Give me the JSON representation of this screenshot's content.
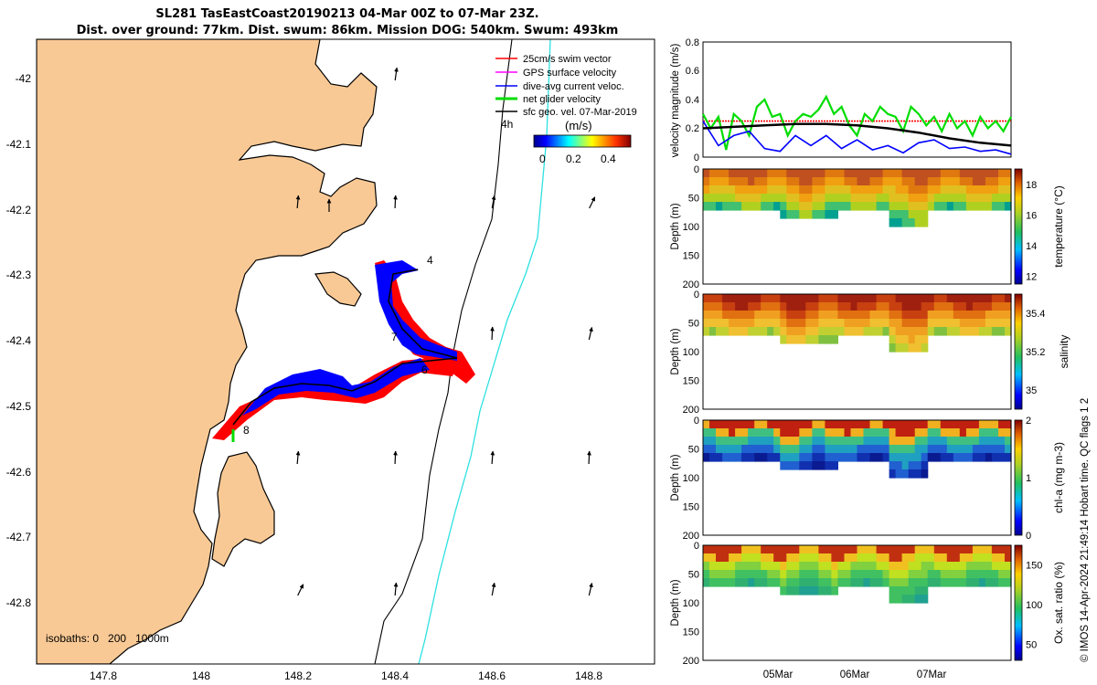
{
  "title": {
    "line1": "SL281 TasEastCoast20190213 04-Mar 00Z to 07-Mar 23Z.",
    "line2": "Dist. over ground: 77km. Dist. swum: 86km. Mission DOG: 540km. Swum: 493km"
  },
  "map": {
    "legend": [
      {
        "label": "25cm/s swim vector",
        "color": "#ff0000"
      },
      {
        "label": "GPS surface velocity",
        "color": "#ff00ff"
      },
      {
        "label": "dive-avg current veloc.",
        "color": "#0000ff"
      },
      {
        "label": "net glider velocity",
        "color": "#00dd00"
      },
      {
        "label": "sfc geo. vel. 07-Mar-2019",
        "color": "#000000"
      }
    ],
    "arrow_age_label": "4h",
    "colorbar_title": "(m/s)",
    "colorbar_ticks": [
      "0",
      "0.2",
      "0.4"
    ],
    "isobath_label": "isobaths: 0   200   1000m",
    "x_ticks": [
      "147.8",
      "148",
      "148.2",
      "148.4",
      "148.6",
      "148.8"
    ],
    "y_ticks": [
      "-42",
      "-42.1",
      "-42.2",
      "-42.3",
      "-42.4",
      "-42.5",
      "-42.6",
      "-42.7",
      "-42.8"
    ],
    "day_markers": [
      "4",
      "6",
      "7",
      "8"
    ],
    "colors": {
      "land": "#f9c995",
      "track_red": "#ff0000",
      "track_blue": "#0000ff",
      "isobath_1000": "#2ee0e0"
    }
  },
  "watermark": "© IMOS 14-Apr-2024 21:49:14 Hobart time. QC flags 1  2",
  "chart_data": [
    {
      "type": "line",
      "title": "",
      "ylabel": "velocity magnitude (m/s)",
      "ylim": [
        0,
        0.8
      ],
      "y_ticks": [
        "0",
        "0.2",
        "0.4",
        "0.6",
        "0.8"
      ],
      "x_ticks": [
        "05Mar",
        "06Mar",
        "07Mar"
      ],
      "series": [
        {
          "name": "swim speed",
          "color": "#ff0000",
          "x": [
            0,
            0.5,
            1,
            1.5,
            2,
            2.5,
            3,
            3.5,
            4
          ],
          "y": [
            0.25,
            0.25,
            0.25,
            0.25,
            0.25,
            0.25,
            0.25,
            0.25,
            0.25
          ]
        },
        {
          "name": "net glider velocity",
          "color": "#00dd00",
          "x": [
            0,
            0.1,
            0.2,
            0.3,
            0.4,
            0.5,
            0.6,
            0.7,
            0.8,
            0.9,
            1.0,
            1.1,
            1.2,
            1.3,
            1.4,
            1.5,
            1.6,
            1.7,
            1.8,
            1.9,
            2.0,
            2.1,
            2.2,
            2.3,
            2.4,
            2.5,
            2.6,
            2.7,
            2.8,
            2.9,
            3.0,
            3.1,
            3.2,
            3.3,
            3.4,
            3.5,
            3.6,
            3.7,
            3.8,
            3.9,
            4.0
          ],
          "y": [
            0.3,
            0.2,
            0.28,
            0.05,
            0.3,
            0.25,
            0.15,
            0.35,
            0.4,
            0.28,
            0.3,
            0.15,
            0.25,
            0.3,
            0.28,
            0.33,
            0.42,
            0.3,
            0.35,
            0.22,
            0.15,
            0.3,
            0.25,
            0.35,
            0.3,
            0.28,
            0.18,
            0.35,
            0.3,
            0.22,
            0.28,
            0.18,
            0.3,
            0.2,
            0.25,
            0.15,
            0.28,
            0.2,
            0.25,
            0.18,
            0.28
          ]
        },
        {
          "name": "dive-avg current veloc.",
          "color": "#0000ff",
          "x": [
            0,
            0.2,
            0.4,
            0.6,
            0.8,
            1.0,
            1.2,
            1.4,
            1.6,
            1.8,
            2.0,
            2.2,
            2.4,
            2.6,
            2.8,
            3.0,
            3.2,
            3.4,
            3.6,
            3.8,
            4.0
          ],
          "y": [
            0.25,
            0.08,
            0.15,
            0.18,
            0.06,
            0.04,
            0.15,
            0.08,
            0.15,
            0.06,
            0.12,
            0.05,
            0.08,
            0.03,
            0.1,
            0.12,
            0.06,
            0.07,
            0.04,
            0.05,
            0.02
          ]
        },
        {
          "name": "sfc geo. vel.",
          "color": "#000000",
          "x": [
            0,
            0.4,
            0.8,
            1.2,
            1.6,
            2.0,
            2.4,
            2.8,
            3.2,
            3.6,
            4.0
          ],
          "y": [
            0.2,
            0.21,
            0.22,
            0.23,
            0.23,
            0.22,
            0.2,
            0.17,
            0.13,
            0.1,
            0.08
          ]
        }
      ]
    },
    {
      "type": "heatmap",
      "ylabel": "Depth (m)",
      "ylim": [
        0,
        200
      ],
      "y_ticks": [
        "0",
        "50",
        "100",
        "150",
        "200"
      ],
      "colorbar_label": "temperature (°C)",
      "colorbar_ticks": [
        "12",
        "14",
        "16",
        "18"
      ],
      "clim": [
        11.5,
        19
      ]
    },
    {
      "type": "heatmap",
      "ylabel": "Depth (m)",
      "ylim": [
        0,
        200
      ],
      "y_ticks": [
        "0",
        "50",
        "100",
        "150",
        "200"
      ],
      "colorbar_label": "salinity",
      "colorbar_ticks": [
        "35",
        "35.2",
        "35.4"
      ],
      "clim": [
        34.9,
        35.5
      ]
    },
    {
      "type": "heatmap",
      "ylabel": "Depth (m)",
      "ylim": [
        0,
        200
      ],
      "y_ticks": [
        "0",
        "50",
        "100",
        "150",
        "200"
      ],
      "colorbar_label": "chl-a (mg m-3)",
      "colorbar_ticks": [
        "0",
        "1",
        "2"
      ],
      "clim": [
        0,
        2
      ]
    },
    {
      "type": "heatmap",
      "ylabel": "Depth (m)",
      "ylim": [
        0,
        200
      ],
      "y_ticks": [
        "0",
        "50",
        "100",
        "150",
        "200"
      ],
      "x_ticks": [
        "05Mar",
        "06Mar",
        "07Mar"
      ],
      "colorbar_label": "Ox. sat. ratio (%)",
      "colorbar_ticks": [
        "50",
        "100",
        "150"
      ],
      "clim": [
        30,
        175
      ]
    }
  ]
}
